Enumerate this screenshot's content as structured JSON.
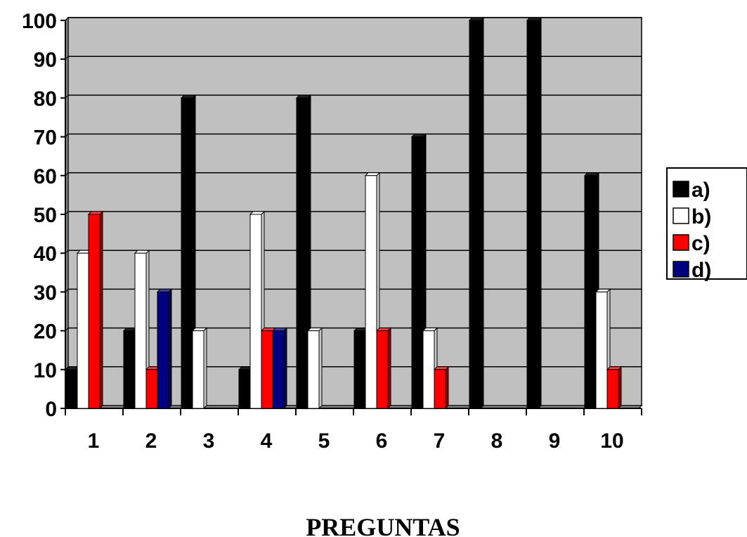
{
  "chart_data": {
    "type": "bar",
    "title": "",
    "xlabel": "PREGUNTAS",
    "ylabel": "",
    "ylim": [
      0,
      100
    ],
    "yticks": [
      0,
      10,
      20,
      30,
      40,
      50,
      60,
      70,
      80,
      90,
      100
    ],
    "grid": true,
    "legend_position": "right",
    "categories": [
      "1",
      "2",
      "3",
      "4",
      "5",
      "6",
      "7",
      "8",
      "9",
      "10"
    ],
    "series": [
      {
        "name": "a)",
        "color": "#000000",
        "values": [
          10,
          20,
          80,
          10,
          80,
          20,
          70,
          100,
          100,
          60
        ]
      },
      {
        "name": "b)",
        "color": "#ffffff",
        "values": [
          40,
          40,
          20,
          50,
          20,
          60,
          20,
          0,
          0,
          30
        ]
      },
      {
        "name": "c)",
        "color": "#ff0000",
        "values": [
          50,
          10,
          0,
          20,
          0,
          20,
          10,
          0,
          0,
          10
        ]
      },
      {
        "name": "d)",
        "color": "#000080",
        "values": [
          0,
          30,
          0,
          20,
          0,
          0,
          0,
          0,
          0,
          0
        ]
      }
    ],
    "colors": {
      "plot_background": "#c0c0c0",
      "wall_side": "#808080"
    }
  }
}
